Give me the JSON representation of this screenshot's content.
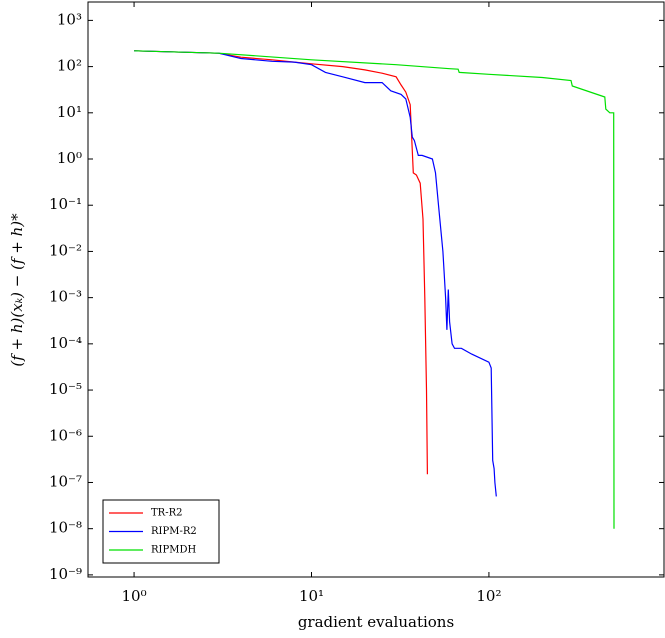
{
  "chart_data": {
    "type": "line",
    "xlabel": "gradient evaluations",
    "ylabel": "(f + h)(xₖ) − (f + h)*",
    "xscale": "log",
    "yscale": "log",
    "xlim": [
      0.55,
      970
    ],
    "ylim": [
      9e-10,
      2500
    ],
    "xticks": [
      {
        "value": 1,
        "label": "10⁰"
      },
      {
        "value": 10,
        "label": "10¹"
      },
      {
        "value": 100,
        "label": "10²"
      }
    ],
    "yticks": [
      {
        "value": 1e-09,
        "label": "10⁻⁹"
      },
      {
        "value": 1e-08,
        "label": "10⁻⁸"
      },
      {
        "value": 1e-07,
        "label": "10⁻⁷"
      },
      {
        "value": 1e-06,
        "label": "10⁻⁶"
      },
      {
        "value": 1e-05,
        "label": "10⁻⁵"
      },
      {
        "value": 0.0001,
        "label": "10⁻⁴"
      },
      {
        "value": 0.001,
        "label": "10⁻³"
      },
      {
        "value": 0.01,
        "label": "10⁻²"
      },
      {
        "value": 0.1,
        "label": "10⁻¹"
      },
      {
        "value": 1,
        "label": "10⁰"
      },
      {
        "value": 10,
        "label": "10¹"
      },
      {
        "value": 100,
        "label": "10²"
      },
      {
        "value": 1000,
        "label": "10³"
      }
    ],
    "legend": "lower left",
    "series": [
      {
        "name": "TR-R2",
        "color": "#ff0000",
        "x": [
          1,
          3,
          4,
          6,
          8,
          10,
          15,
          20,
          25,
          30,
          32,
          34,
          36,
          37,
          37.5,
          39,
          41,
          42.5,
          43.5,
          44.5,
          45
        ],
        "values": [
          220,
          195,
          160,
          140,
          125,
          115,
          100,
          85,
          72,
          60,
          40,
          28,
          15,
          1.5,
          0.5,
          0.45,
          0.3,
          0.05,
          0.001,
          1e-05,
          1.5e-07
        ]
      },
      {
        "name": "RIPM-R2",
        "color": "#0000ff",
        "x": [
          1,
          3,
          4,
          6,
          8,
          10,
          12,
          15,
          20,
          25,
          28,
          32,
          34,
          36,
          37,
          38,
          40,
          42,
          48,
          50,
          52,
          55,
          57,
          58,
          59,
          60,
          62,
          64,
          70,
          80,
          100,
          103,
          105,
          107,
          108,
          110
        ],
        "values": [
          220,
          195,
          150,
          130,
          125,
          110,
          75,
          60,
          45,
          45,
          30,
          25,
          20,
          8,
          3,
          2.5,
          1.2,
          1.2,
          1.0,
          0.5,
          0.1,
          0.01,
          0.001,
          0.0002,
          0.0015,
          0.0003,
          0.0001,
          8e-05,
          8e-05,
          6e-05,
          4e-05,
          3e-05,
          3e-07,
          2e-07,
          1e-07,
          5e-08
        ]
      },
      {
        "name": "RIPMDH",
        "color": "#00e000",
        "x": [
          1,
          3,
          10,
          30,
          60,
          67,
          68,
          100,
          200,
          290,
          295,
          450,
          456,
          480,
          505,
          507
        ],
        "values": [
          220,
          195,
          140,
          110,
          90,
          88,
          75,
          68,
          58,
          50,
          38,
          22,
          12,
          10,
          10,
          1e-08
        ]
      }
    ]
  }
}
